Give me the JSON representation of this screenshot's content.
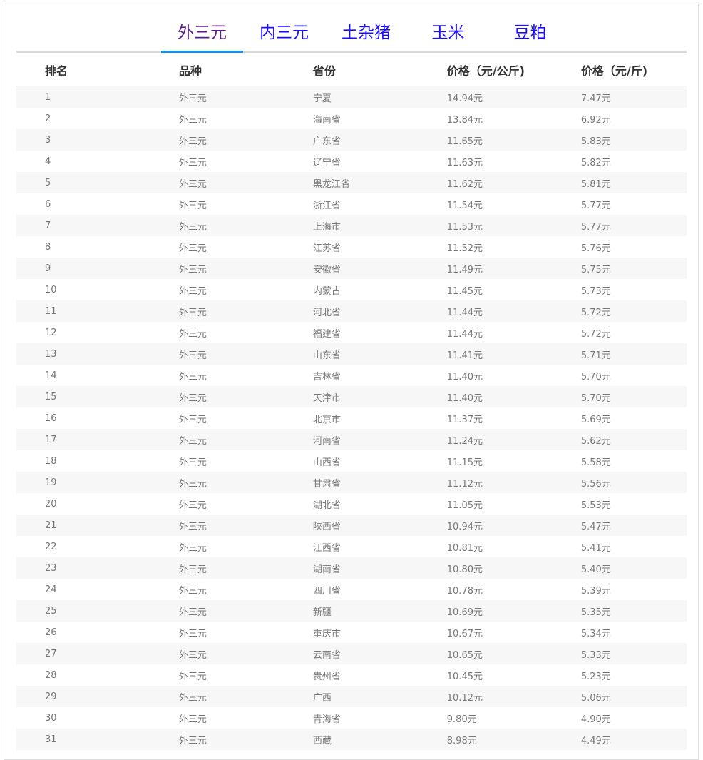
{
  "tabs": [
    {
      "label": "外三元",
      "active": true
    },
    {
      "label": "内三元"
    },
    {
      "label": "土杂猪"
    },
    {
      "label": "玉米"
    },
    {
      "label": "豆粕"
    }
  ],
  "colors": {
    "active_tab_text": "#5b1a8f",
    "tab_text": "#1a0dff",
    "active_underline": "#1890e8",
    "stripe": "#f7f7f7"
  },
  "table": {
    "headers": [
      "排名",
      "品种",
      "省份",
      "价格（元/公斤)",
      "价格（元/斤)"
    ],
    "rows": [
      [
        "1",
        "外三元",
        "宁夏",
        "14.94元",
        "7.47元"
      ],
      [
        "2",
        "外三元",
        "海南省",
        "13.84元",
        "6.92元"
      ],
      [
        "3",
        "外三元",
        "广东省",
        "11.65元",
        "5.83元"
      ],
      [
        "4",
        "外三元",
        "辽宁省",
        "11.63元",
        "5.82元"
      ],
      [
        "5",
        "外三元",
        "黑龙江省",
        "11.62元",
        "5.81元"
      ],
      [
        "6",
        "外三元",
        "浙江省",
        "11.54元",
        "5.77元"
      ],
      [
        "7",
        "外三元",
        "上海市",
        "11.53元",
        "5.77元"
      ],
      [
        "8",
        "外三元",
        "江苏省",
        "11.52元",
        "5.76元"
      ],
      [
        "9",
        "外三元",
        "安徽省",
        "11.49元",
        "5.75元"
      ],
      [
        "10",
        "外三元",
        "内蒙古",
        "11.45元",
        "5.73元"
      ],
      [
        "11",
        "外三元",
        "河北省",
        "11.44元",
        "5.72元"
      ],
      [
        "12",
        "外三元",
        "福建省",
        "11.44元",
        "5.72元"
      ],
      [
        "13",
        "外三元",
        "山东省",
        "11.41元",
        "5.71元"
      ],
      [
        "14",
        "外三元",
        "吉林省",
        "11.40元",
        "5.70元"
      ],
      [
        "15",
        "外三元",
        "天津市",
        "11.40元",
        "5.70元"
      ],
      [
        "16",
        "外三元",
        "北京市",
        "11.37元",
        "5.69元"
      ],
      [
        "17",
        "外三元",
        "河南省",
        "11.24元",
        "5.62元"
      ],
      [
        "18",
        "外三元",
        "山西省",
        "11.15元",
        "5.58元"
      ],
      [
        "19",
        "外三元",
        "甘肃省",
        "11.12元",
        "5.56元"
      ],
      [
        "20",
        "外三元",
        "湖北省",
        "11.05元",
        "5.53元"
      ],
      [
        "21",
        "外三元",
        "陕西省",
        "10.94元",
        "5.47元"
      ],
      [
        "22",
        "外三元",
        "江西省",
        "10.81元",
        "5.41元"
      ],
      [
        "23",
        "外三元",
        "湖南省",
        "10.80元",
        "5.40元"
      ],
      [
        "24",
        "外三元",
        "四川省",
        "10.78元",
        "5.39元"
      ],
      [
        "25",
        "外三元",
        "新疆",
        "10.69元",
        "5.35元"
      ],
      [
        "26",
        "外三元",
        "重庆市",
        "10.67元",
        "5.34元"
      ],
      [
        "27",
        "外三元",
        "云南省",
        "10.65元",
        "5.33元"
      ],
      [
        "28",
        "外三元",
        "贵州省",
        "10.45元",
        "5.23元"
      ],
      [
        "29",
        "外三元",
        "广西",
        "10.12元",
        "5.06元"
      ],
      [
        "30",
        "外三元",
        "青海省",
        "9.80元",
        "4.90元"
      ],
      [
        "31",
        "外三元",
        "西藏",
        "8.98元",
        "4.49元"
      ]
    ]
  }
}
